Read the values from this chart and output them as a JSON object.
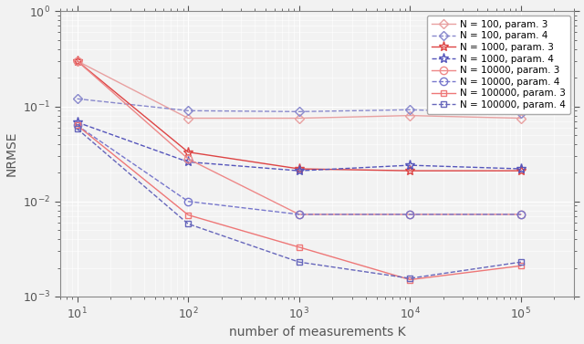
{
  "title": "",
  "xlabel": "number of measurements K",
  "ylabel": "NRMSE",
  "xvals": [
    10,
    100,
    1000,
    10000,
    100000
  ],
  "series": [
    {
      "label": "N = 100, param. 3",
      "color": "#e8a0a0",
      "linestyle": "-",
      "marker": "D",
      "markersize": 5,
      "linewidth": 1.0,
      "markerfilled": false,
      "values": [
        0.3,
        0.075,
        0.075,
        0.08,
        0.075
      ]
    },
    {
      "label": "N = 100, param. 4",
      "color": "#8888cc",
      "linestyle": "--",
      "marker": "D",
      "markersize": 5,
      "linewidth": 1.0,
      "markerfilled": false,
      "values": [
        0.12,
        0.09,
        0.088,
        0.092,
        0.085
      ]
    },
    {
      "label": "N = 1000, param. 3",
      "color": "#dd4444",
      "linestyle": "-",
      "marker": "*",
      "markersize": 8,
      "linewidth": 1.0,
      "markerfilled": false,
      "values": [
        0.3,
        0.033,
        0.022,
        0.021,
        0.021
      ]
    },
    {
      "label": "N = 1000, param. 4",
      "color": "#5555bb",
      "linestyle": "--",
      "marker": "*",
      "markersize": 8,
      "linewidth": 1.0,
      "markerfilled": false,
      "values": [
        0.068,
        0.026,
        0.021,
        0.024,
        0.022
      ]
    },
    {
      "label": "N = 10000, param. 3",
      "color": "#ee8888",
      "linestyle": "-",
      "marker": "o",
      "markersize": 6,
      "linewidth": 1.0,
      "markerfilled": false,
      "values": [
        0.3,
        0.028,
        0.0073,
        0.0073,
        0.0073
      ]
    },
    {
      "label": "N = 10000, param. 4",
      "color": "#7777cc",
      "linestyle": "--",
      "marker": "o",
      "markersize": 6,
      "linewidth": 1.0,
      "markerfilled": false,
      "values": [
        0.063,
        0.01,
        0.0073,
        0.0073,
        0.0073
      ]
    },
    {
      "label": "N = 100000, param. 3",
      "color": "#ee7777",
      "linestyle": "-",
      "marker": "s",
      "markersize": 5,
      "linewidth": 1.0,
      "markerfilled": false,
      "values": [
        0.063,
        0.0072,
        0.0033,
        0.0015,
        0.0021
      ]
    },
    {
      "label": "N = 100000, param. 4",
      "color": "#6666bb",
      "linestyle": "--",
      "marker": "s",
      "markersize": 5,
      "linewidth": 1.0,
      "markerfilled": false,
      "values": [
        0.058,
        0.0058,
        0.0023,
        0.00155,
        0.0023
      ]
    }
  ],
  "xlim": [
    7,
    300000
  ],
  "ylim": [
    0.001,
    1.0
  ],
  "background_color": "#f2f2f2",
  "grid_color": "#ffffff",
  "axes_color": "#888888",
  "tick_color": "#555555"
}
